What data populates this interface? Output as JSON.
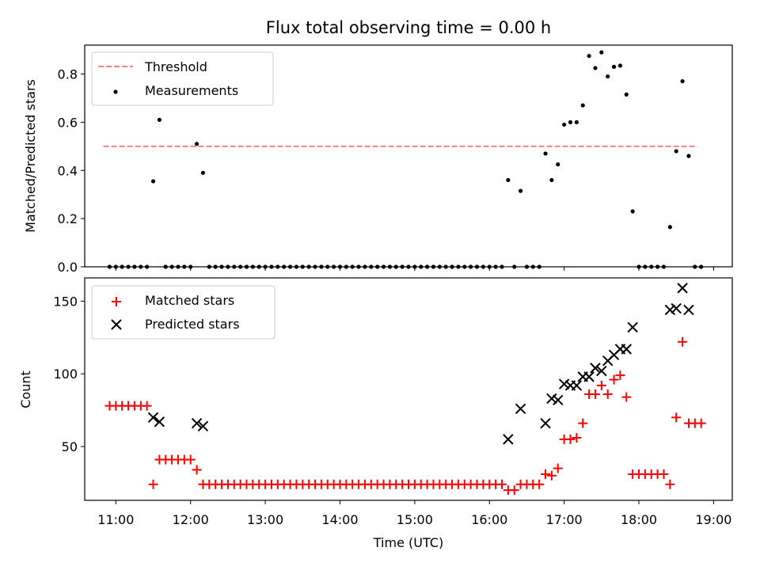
{
  "title": "Flux total observing time = 0.00 h",
  "colors": {
    "threshold": "#ff7f7f",
    "measurements": "#000000",
    "matched": "#ff0000",
    "predicted": "#000000"
  },
  "chart_data": [
    {
      "type": "scatter",
      "title": "Flux total observing time = 0.00 h",
      "xlabel": "",
      "ylabel": "Matched/Predicted stars",
      "ylim": [
        0,
        0.92
      ],
      "yticks": [
        "0.0",
        "0.2",
        "0.4",
        "0.6",
        "0.8"
      ],
      "legend_position": "top-left",
      "legend": [
        "Threshold",
        "Measurements"
      ],
      "series": [
        {
          "name": "Threshold",
          "style": "dashed-line",
          "points": [
            [
              "10:50",
              0.5
            ],
            [
              "18:47",
              0.5
            ]
          ]
        },
        {
          "name": "Measurements",
          "style": "dot",
          "points": [
            [
              "10:55",
              0
            ],
            [
              "11:00",
              0
            ],
            [
              "11:05",
              0
            ],
            [
              "11:10",
              0
            ],
            [
              "11:15",
              0
            ],
            [
              "11:20",
              0
            ],
            [
              "11:25",
              0
            ],
            [
              "11:30",
              0.355
            ],
            [
              "11:35",
              0.61
            ],
            [
              "11:40",
              0
            ],
            [
              "11:45",
              0
            ],
            [
              "11:50",
              0
            ],
            [
              "11:55",
              0
            ],
            [
              "12:00",
              0
            ],
            [
              "12:05",
              0.51
            ],
            [
              "12:10",
              0.39
            ],
            [
              "12:15",
              0
            ],
            [
              "12:20",
              0
            ],
            [
              "12:25",
              0
            ],
            [
              "12:30",
              0
            ],
            [
              "12:35",
              0
            ],
            [
              "12:40",
              0
            ],
            [
              "12:45",
              0
            ],
            [
              "12:50",
              0
            ],
            [
              "12:55",
              0
            ],
            [
              "13:00",
              0
            ],
            [
              "13:05",
              0
            ],
            [
              "13:10",
              0
            ],
            [
              "13:15",
              0
            ],
            [
              "13:20",
              0
            ],
            [
              "13:25",
              0
            ],
            [
              "13:30",
              0
            ],
            [
              "13:35",
              0
            ],
            [
              "13:40",
              0
            ],
            [
              "13:45",
              0
            ],
            [
              "13:50",
              0
            ],
            [
              "13:55",
              0
            ],
            [
              "14:00",
              0
            ],
            [
              "14:05",
              0
            ],
            [
              "14:10",
              0
            ],
            [
              "14:15",
              0
            ],
            [
              "14:20",
              0
            ],
            [
              "14:25",
              0
            ],
            [
              "14:30",
              0
            ],
            [
              "14:35",
              0
            ],
            [
              "14:40",
              0
            ],
            [
              "14:45",
              0
            ],
            [
              "14:50",
              0
            ],
            [
              "14:55",
              0
            ],
            [
              "15:00",
              0
            ],
            [
              "15:05",
              0
            ],
            [
              "15:10",
              0
            ],
            [
              "15:15",
              0
            ],
            [
              "15:20",
              0
            ],
            [
              "15:25",
              0
            ],
            [
              "15:30",
              0
            ],
            [
              "15:35",
              0
            ],
            [
              "15:40",
              0
            ],
            [
              "15:45",
              0
            ],
            [
              "15:50",
              0
            ],
            [
              "15:55",
              0
            ],
            [
              "16:00",
              0
            ],
            [
              "16:05",
              0
            ],
            [
              "16:10",
              0
            ],
            [
              "16:15",
              0.36
            ],
            [
              "16:20",
              0
            ],
            [
              "16:25",
              0.315
            ],
            [
              "16:30",
              0
            ],
            [
              "16:35",
              0
            ],
            [
              "16:40",
              0
            ],
            [
              "16:45",
              0.47
            ],
            [
              "16:50",
              0.36
            ],
            [
              "16:55",
              0.425
            ],
            [
              "17:00",
              0.59
            ],
            [
              "17:05",
              0.6
            ],
            [
              "17:10",
              0.6
            ],
            [
              "17:15",
              0.67
            ],
            [
              "17:20",
              0.875
            ],
            [
              "17:25",
              0.825
            ],
            [
              "17:30",
              0.89
            ],
            [
              "17:35",
              0.79
            ],
            [
              "17:40",
              0.83
            ],
            [
              "17:45",
              0.835
            ],
            [
              "17:50",
              0.715
            ],
            [
              "17:55",
              0.23
            ],
            [
              "18:00",
              0
            ],
            [
              "18:05",
              0
            ],
            [
              "18:10",
              0
            ],
            [
              "18:15",
              0
            ],
            [
              "18:20",
              0
            ],
            [
              "18:25",
              0.165
            ],
            [
              "18:30",
              0.48
            ],
            [
              "18:35",
              0.77
            ],
            [
              "18:40",
              0.46
            ],
            [
              "18:45",
              0
            ],
            [
              "18:50",
              0
            ]
          ]
        }
      ]
    },
    {
      "type": "scatter",
      "xlabel": "Time (UTC)",
      "ylabel": "Count",
      "xlim": [
        "10:35",
        "19:15"
      ],
      "ylim": [
        13,
        166
      ],
      "xticks": [
        "11:00",
        "12:00",
        "13:00",
        "14:00",
        "15:00",
        "16:00",
        "17:00",
        "18:00",
        "19:00"
      ],
      "yticks": [
        "50",
        "100",
        "150"
      ],
      "legend_position": "top-left",
      "legend": [
        "Matched stars",
        "Predicted stars"
      ],
      "series": [
        {
          "name": "Matched stars",
          "marker": "+",
          "points": [
            [
              "10:55",
              78
            ],
            [
              "11:00",
              78
            ],
            [
              "11:05",
              78
            ],
            [
              "11:10",
              78
            ],
            [
              "11:15",
              78
            ],
            [
              "11:20",
              78
            ],
            [
              "11:25",
              78
            ],
            [
              "11:30",
              24
            ],
            [
              "11:35",
              41
            ],
            [
              "11:40",
              41
            ],
            [
              "11:45",
              41
            ],
            [
              "11:50",
              41
            ],
            [
              "11:55",
              41
            ],
            [
              "12:00",
              41
            ],
            [
              "12:05",
              34
            ],
            [
              "12:10",
              24
            ],
            [
              "12:15",
              24
            ],
            [
              "12:20",
              24
            ],
            [
              "12:25",
              24
            ],
            [
              "12:30",
              24
            ],
            [
              "12:35",
              24
            ],
            [
              "12:40",
              24
            ],
            [
              "12:45",
              24
            ],
            [
              "12:50",
              24
            ],
            [
              "12:55",
              24
            ],
            [
              "13:00",
              24
            ],
            [
              "13:05",
              24
            ],
            [
              "13:10",
              24
            ],
            [
              "13:15",
              24
            ],
            [
              "13:20",
              24
            ],
            [
              "13:25",
              24
            ],
            [
              "13:30",
              24
            ],
            [
              "13:35",
              24
            ],
            [
              "13:40",
              24
            ],
            [
              "13:45",
              24
            ],
            [
              "13:50",
              24
            ],
            [
              "13:55",
              24
            ],
            [
              "14:00",
              24
            ],
            [
              "14:05",
              24
            ],
            [
              "14:10",
              24
            ],
            [
              "14:15",
              24
            ],
            [
              "14:20",
              24
            ],
            [
              "14:25",
              24
            ],
            [
              "14:30",
              24
            ],
            [
              "14:35",
              24
            ],
            [
              "14:40",
              24
            ],
            [
              "14:45",
              24
            ],
            [
              "14:50",
              24
            ],
            [
              "14:55",
              24
            ],
            [
              "15:00",
              24
            ],
            [
              "15:05",
              24
            ],
            [
              "15:10",
              24
            ],
            [
              "15:15",
              24
            ],
            [
              "15:20",
              24
            ],
            [
              "15:25",
              24
            ],
            [
              "15:30",
              24
            ],
            [
              "15:35",
              24
            ],
            [
              "15:40",
              24
            ],
            [
              "15:45",
              24
            ],
            [
              "15:50",
              24
            ],
            [
              "15:55",
              24
            ],
            [
              "16:00",
              24
            ],
            [
              "16:05",
              24
            ],
            [
              "16:10",
              24
            ],
            [
              "16:15",
              20
            ],
            [
              "16:20",
              20
            ],
            [
              "16:25",
              24
            ],
            [
              "16:30",
              24
            ],
            [
              "16:35",
              24
            ],
            [
              "16:40",
              24
            ],
            [
              "16:45",
              31
            ],
            [
              "16:50",
              30
            ],
            [
              "16:55",
              35
            ],
            [
              "17:00",
              55
            ],
            [
              "17:05",
              55
            ],
            [
              "17:10",
              56
            ],
            [
              "17:15",
              66
            ],
            [
              "17:20",
              86
            ],
            [
              "17:25",
              86
            ],
            [
              "17:30",
              92
            ],
            [
              "17:35",
              86
            ],
            [
              "17:40",
              96
            ],
            [
              "17:45",
              99
            ],
            [
              "17:50",
              84
            ],
            [
              "17:55",
              31
            ],
            [
              "18:00",
              31
            ],
            [
              "18:05",
              31
            ],
            [
              "18:10",
              31
            ],
            [
              "18:15",
              31
            ],
            [
              "18:20",
              31
            ],
            [
              "18:25",
              24
            ],
            [
              "18:30",
              70
            ],
            [
              "18:35",
              122
            ],
            [
              "18:40",
              66
            ],
            [
              "18:45",
              66
            ],
            [
              "18:50",
              66
            ]
          ]
        },
        {
          "name": "Predicted stars",
          "marker": "x",
          "points": [
            [
              "11:30",
              70
            ],
            [
              "11:35",
              67
            ],
            [
              "12:05",
              66
            ],
            [
              "12:10",
              64
            ],
            [
              "16:15",
              55
            ],
            [
              "16:25",
              76
            ],
            [
              "16:45",
              66
            ],
            [
              "16:50",
              83
            ],
            [
              "16:55",
              82
            ],
            [
              "17:00",
              93
            ],
            [
              "17:05",
              92
            ],
            [
              "17:10",
              92
            ],
            [
              "17:15",
              98
            ],
            [
              "17:20",
              98
            ],
            [
              "17:25",
              104
            ],
            [
              "17:30",
              102
            ],
            [
              "17:35",
              109
            ],
            [
              "17:40",
              113
            ],
            [
              "17:45",
              117
            ],
            [
              "17:50",
              117
            ],
            [
              "17:55",
              132
            ],
            [
              "18:25",
              144
            ],
            [
              "18:30",
              145
            ],
            [
              "18:35",
              159
            ],
            [
              "18:40",
              144
            ]
          ]
        }
      ]
    }
  ]
}
